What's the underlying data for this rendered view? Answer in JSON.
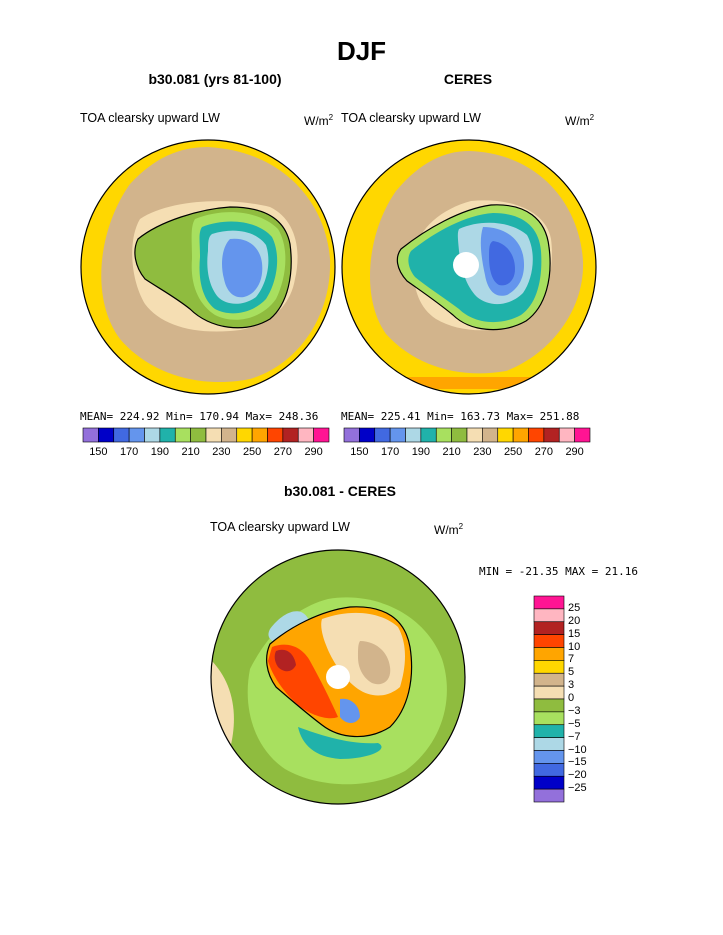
{
  "title": "DJF",
  "units_main": "W/m",
  "units_sup": "2",
  "panels": [
    {
      "title": "b30.081 (yrs 81-100)",
      "subtitle": "TOA clearsky upward LW",
      "stats": "MEAN= 224.92  Min= 170.94  Max= 248.36"
    },
    {
      "title": "CERES",
      "subtitle": "TOA clearsky upward LW",
      "stats": "MEAN= 225.41  Min= 163.73  Max= 251.88"
    },
    {
      "title": "b30.081 - CERES",
      "subtitle": "TOA clearsky upward LW",
      "stats": "MIN = -21.35 MAX =  21.16"
    }
  ],
  "chart_data": [
    {
      "type": "heatmap",
      "title": "b30.081 (yrs 81-100)",
      "subtitle": "TOA clearsky upward LW",
      "units": "W/m2",
      "projection": "south polar stereographic",
      "mean": 224.92,
      "min": 170.94,
      "max": 248.36,
      "levels": [
        150,
        160,
        170,
        180,
        190,
        200,
        210,
        220,
        230,
        240,
        250,
        260,
        270,
        280,
        290
      ],
      "level_labels": [
        "150",
        "170",
        "190",
        "210",
        "230",
        "250",
        "270",
        "290"
      ],
      "colors": [
        "#9370db",
        "#0000c8",
        "#4169e1",
        "#6495ed",
        "#add8e6",
        "#20b2aa",
        "#a8e05f",
        "#8fbc3f",
        "#f5deb3",
        "#d2b48c",
        "#ffd700",
        "#ffa500",
        "#ff4500",
        "#b22222",
        "#ffb6c1",
        "#ff1493"
      ]
    },
    {
      "type": "heatmap",
      "title": "CERES",
      "subtitle": "TOA clearsky upward LW",
      "units": "W/m2",
      "projection": "south polar stereographic",
      "mean": 225.41,
      "min": 163.73,
      "max": 251.88,
      "levels": [
        150,
        160,
        170,
        180,
        190,
        200,
        210,
        220,
        230,
        240,
        250,
        260,
        270,
        280,
        290
      ],
      "level_labels": [
        "150",
        "170",
        "190",
        "210",
        "230",
        "250",
        "270",
        "290"
      ],
      "colors": [
        "#9370db",
        "#0000c8",
        "#4169e1",
        "#6495ed",
        "#add8e6",
        "#20b2aa",
        "#a8e05f",
        "#8fbc3f",
        "#f5deb3",
        "#d2b48c",
        "#ffd700",
        "#ffa500",
        "#ff4500",
        "#b22222",
        "#ffb6c1",
        "#ff1493"
      ]
    },
    {
      "type": "heatmap",
      "title": "b30.081 - CERES",
      "subtitle": "TOA clearsky upward LW",
      "units": "W/m2",
      "projection": "south polar stereographic",
      "min": -21.35,
      "max": 21.16,
      "levels": [
        25,
        20,
        15,
        10,
        7,
        5,
        3,
        0,
        -3,
        -5,
        -7,
        -10,
        -15,
        -20,
        -25
      ],
      "level_labels": [
        "25",
        "20",
        "15",
        "10",
        "7",
        "5",
        "3",
        "0",
        "−3",
        "−5",
        "−7",
        "−10",
        "−15",
        "−20",
        "−25"
      ],
      "colors": [
        "#ff1493",
        "#ffb6c1",
        "#b22222",
        "#ff4500",
        "#ffa500",
        "#ffd700",
        "#d2b48c",
        "#f5deb3",
        "#8fbc3f",
        "#a8e05f",
        "#20b2aa",
        "#add8e6",
        "#6495ed",
        "#4169e1",
        "#0000c8",
        "#9370db"
      ]
    }
  ]
}
